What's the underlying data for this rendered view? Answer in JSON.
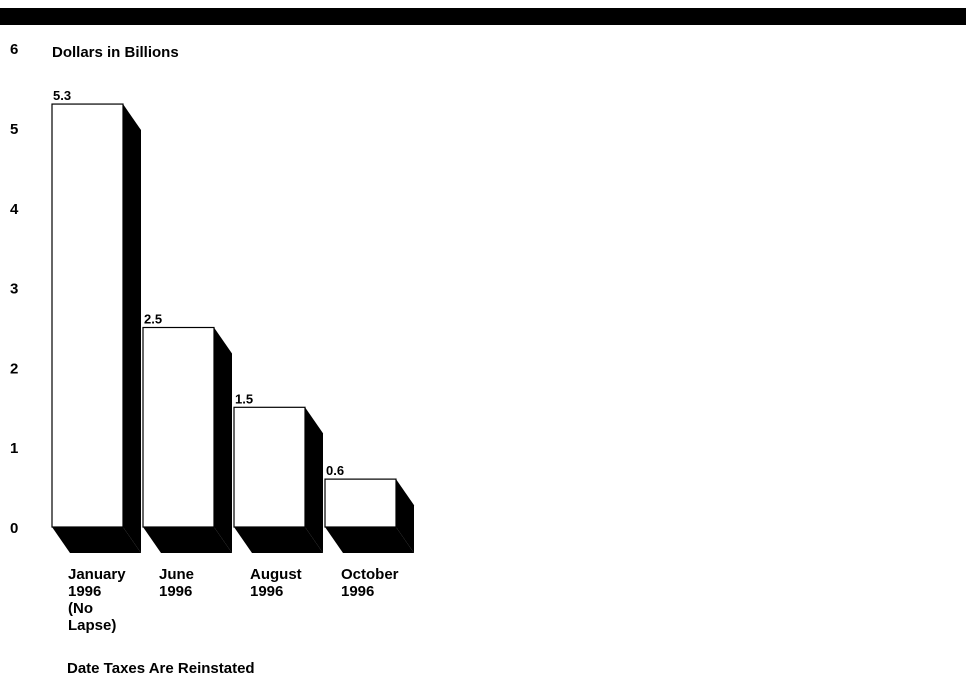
{
  "chart_data": {
    "type": "bar",
    "title": "",
    "ylabel": "Dollars in Billions",
    "xlabel": "Date Taxes Are Reinstated",
    "ylim": [
      0,
      6
    ],
    "yticks": [
      0,
      1,
      2,
      3,
      4,
      5,
      6
    ],
    "categories": [
      [
        "January",
        "1996",
        "(No",
        "Lapse)"
      ],
      [
        "June",
        "1996"
      ],
      [
        "August",
        "1996"
      ],
      [
        "October",
        "1996"
      ]
    ],
    "values": [
      5.3,
      2.5,
      1.5,
      0.6
    ],
    "value_labels": [
      "5.3",
      "2.5",
      "1.5",
      "0.6"
    ],
    "style": "3d",
    "grid": false
  }
}
